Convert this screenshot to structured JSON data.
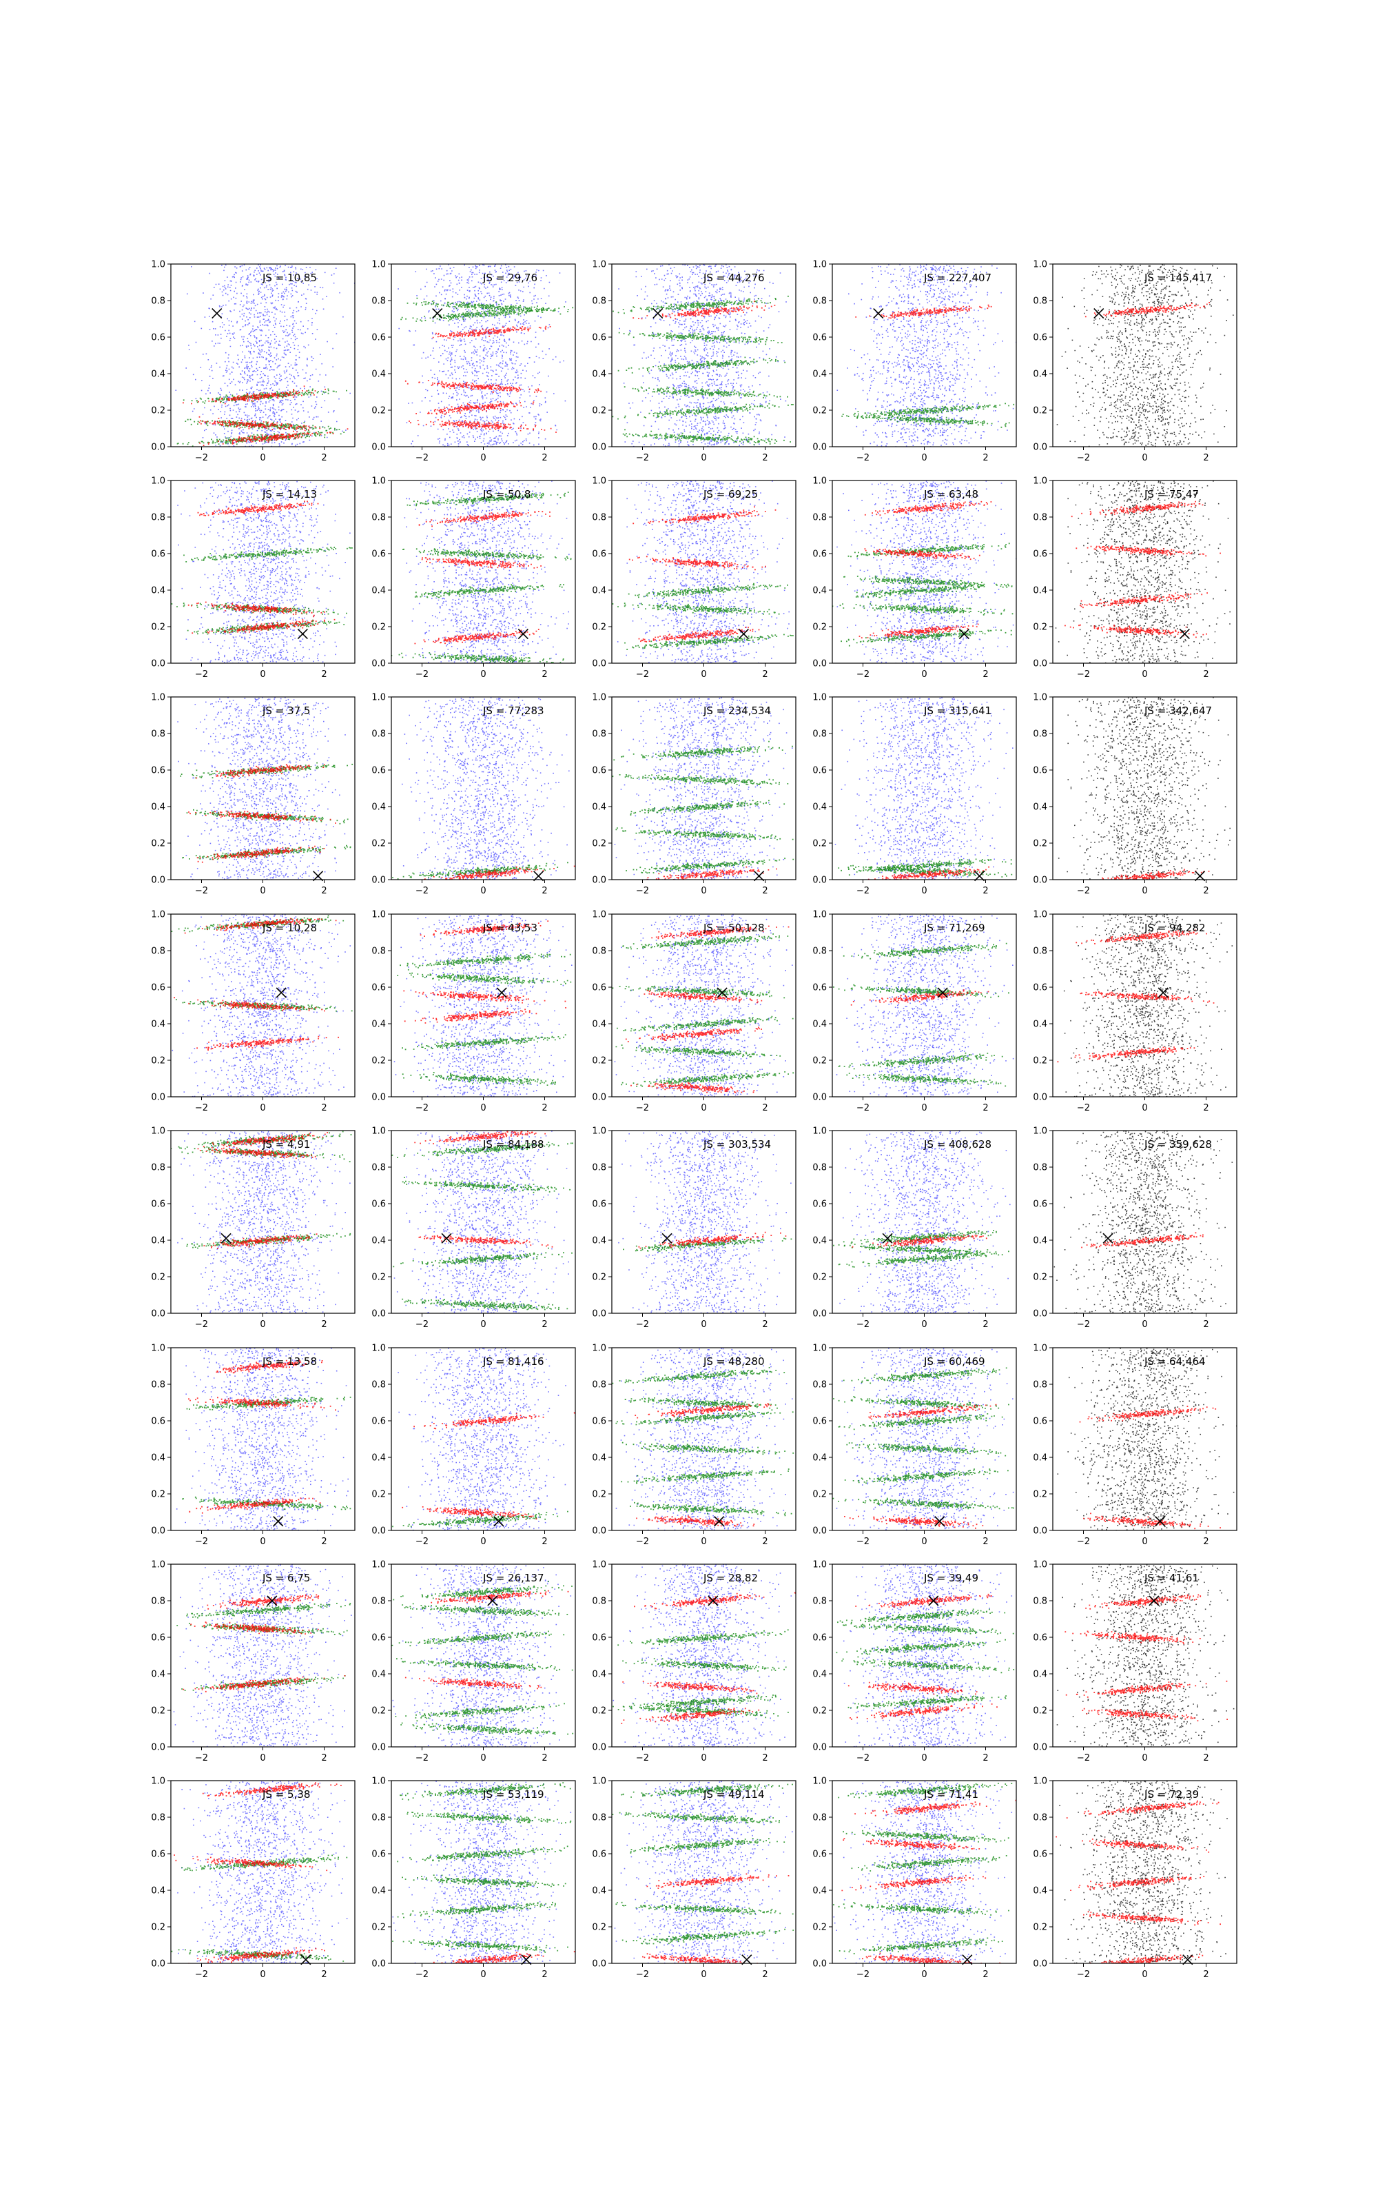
{
  "figure": {
    "rows": 8,
    "cols": 5,
    "colors": {
      "blue": "#0000ff",
      "green": "#008000",
      "red": "#ff0000",
      "black": "#000000",
      "axis": "#000000",
      "background": "#ffffff"
    },
    "marker": "x"
  },
  "chart_data": {
    "type": "scatter",
    "xlim": [
      -3,
      3
    ],
    "ylim": [
      0,
      1
    ],
    "xticks": [
      -2,
      0,
      2
    ],
    "xtick_labels": [
      "−2",
      "0",
      "2"
    ],
    "yticks": [
      0.0,
      0.2,
      0.4,
      0.6,
      0.8,
      1.0
    ],
    "ytick_labels": [
      "0.0",
      "0.2",
      "0.4",
      "0.6",
      "0.8",
      "1.0"
    ],
    "grid": false,
    "rows": [
      {
        "marker": [
          -1.5,
          0.73
        ],
        "panels": [
          {
            "label": "JS = 10,85",
            "green_bands": [
              0.05,
              0.12,
              0.28
            ],
            "red_bands": [
              0.05,
              0.12,
              0.28
            ],
            "blue": true,
            "black": false
          },
          {
            "label": "JS = 29,76",
            "green_bands": [
              0.73,
              0.77
            ],
            "red_bands": [
              0.63,
              0.33,
              0.22,
              0.12
            ],
            "blue": true,
            "black": false
          },
          {
            "label": "JS = 44,276",
            "green_bands": [
              0.78,
              0.6,
              0.45,
              0.3,
              0.2,
              0.05
            ],
            "red_bands": [
              0.74
            ],
            "blue": true,
            "black": false
          },
          {
            "label": "JS = 227,407",
            "green_bands": [
              0.2,
              0.15
            ],
            "red_bands": [
              0.74
            ],
            "blue": true,
            "black": false
          },
          {
            "label": "JS = 145,417",
            "green_bands": [],
            "red_bands": [
              0.75
            ],
            "blue": false,
            "black": true
          }
        ]
      },
      {
        "marker": [
          1.3,
          0.16
        ],
        "panels": [
          {
            "label": "JS = 14,13",
            "green_bands": [
              0.2,
              0.3,
              0.6
            ],
            "red_bands": [
              0.2,
              0.3,
              0.85
            ],
            "blue": true,
            "black": false
          },
          {
            "label": "JS = 50,8",
            "green_bands": [
              0.9,
              0.6,
              0.4,
              0.03
            ],
            "red_bands": [
              0.8,
              0.55,
              0.15
            ],
            "blue": true,
            "black": false
          },
          {
            "label": "JS = 69,25",
            "green_bands": [
              0.4,
              0.3,
              0.12
            ],
            "red_bands": [
              0.8,
              0.55,
              0.16
            ],
            "blue": true,
            "black": false
          },
          {
            "label": "JS = 63,48",
            "green_bands": [
              0.62,
              0.45,
              0.4,
              0.3,
              0.15
            ],
            "red_bands": [
              0.85,
              0.6,
              0.18
            ],
            "blue": true,
            "black": false
          },
          {
            "label": "JS = 75,47",
            "green_bands": [],
            "red_bands": [
              0.85,
              0.62,
              0.35,
              0.18
            ],
            "blue": false,
            "black": true
          }
        ]
      },
      {
        "marker": [
          1.8,
          0.02
        ],
        "panels": [
          {
            "label": "JS = 37,5",
            "green_bands": [
              0.6,
              0.35,
              0.15
            ],
            "red_bands": [
              0.6,
              0.35,
              0.15
            ],
            "blue": true,
            "black": false
          },
          {
            "label": "JS = 77,283",
            "green_bands": [
              0.05
            ],
            "red_bands": [
              0.03
            ],
            "blue": true,
            "black": false
          },
          {
            "label": "JS = 234,534",
            "green_bands": [
              0.7,
              0.55,
              0.4,
              0.25,
              0.08
            ],
            "red_bands": [
              0.03
            ],
            "blue": true,
            "black": false
          },
          {
            "label": "JS = 315,641",
            "green_bands": [
              0.08,
              0.05
            ],
            "red_bands": [
              0.03
            ],
            "blue": true,
            "black": false
          },
          {
            "label": "JS = 342,647",
            "green_bands": [],
            "red_bands": [
              0.02
            ],
            "blue": false,
            "black": true
          }
        ]
      },
      {
        "marker": [
          0.6,
          0.57
        ],
        "panels": [
          {
            "label": "JS = 10,28",
            "green_bands": [
              0.95,
              0.5
            ],
            "red_bands": [
              0.95,
              0.5,
              0.3
            ],
            "blue": true,
            "black": false
          },
          {
            "label": "JS = 43,53",
            "green_bands": [
              0.75,
              0.65,
              0.3,
              0.1
            ],
            "red_bands": [
              0.92,
              0.55,
              0.45
            ],
            "blue": true,
            "black": false
          },
          {
            "label": "JS = 50,128",
            "green_bands": [
              0.85,
              0.58,
              0.4,
              0.25,
              0.1
            ],
            "red_bands": [
              0.9,
              0.55,
              0.35,
              0.05
            ],
            "blue": true,
            "black": false
          },
          {
            "label": "JS = 71,269",
            "green_bands": [
              0.8,
              0.58,
              0.2,
              0.1
            ],
            "red_bands": [
              0.55
            ],
            "blue": true,
            "black": false
          },
          {
            "label": "JS = 94,282",
            "green_bands": [],
            "red_bands": [
              0.88,
              0.55,
              0.25
            ],
            "blue": false,
            "black": true
          }
        ]
      },
      {
        "marker": [
          -1.2,
          0.41
        ],
        "panels": [
          {
            "label": "JS = 4,91",
            "green_bands": [
              0.95,
              0.88,
              0.4
            ],
            "red_bands": [
              0.95,
              0.88,
              0.4
            ],
            "blue": true,
            "black": false
          },
          {
            "label": "JS = 84,188",
            "green_bands": [
              0.9,
              0.7,
              0.3,
              0.05
            ],
            "red_bands": [
              0.97,
              0.4
            ],
            "blue": true,
            "black": false
          },
          {
            "label": "JS = 303,534",
            "green_bands": [
              0.38
            ],
            "red_bands": [
              0.4
            ],
            "blue": true,
            "black": false
          },
          {
            "label": "JS = 408,628",
            "green_bands": [
              0.42,
              0.35,
              0.3
            ],
            "red_bands": [
              0.4
            ],
            "blue": true,
            "black": false
          },
          {
            "label": "JS = 359,628",
            "green_bands": [],
            "red_bands": [
              0.4
            ],
            "blue": false,
            "black": true
          }
        ]
      },
      {
        "marker": [
          0.5,
          0.05
        ],
        "panels": [
          {
            "label": "JS = 13,58",
            "green_bands": [
              0.7,
              0.15
            ],
            "red_bands": [
              0.9,
              0.7,
              0.15
            ],
            "blue": true,
            "black": false
          },
          {
            "label": "JS = 81,416",
            "green_bands": [
              0.06
            ],
            "red_bands": [
              0.6,
              0.1
            ],
            "blue": true,
            "black": false
          },
          {
            "label": "JS = 48,280",
            "green_bands": [
              0.85,
              0.7,
              0.62,
              0.45,
              0.3,
              0.12
            ],
            "red_bands": [
              0.66,
              0.05
            ],
            "blue": true,
            "black": false
          },
          {
            "label": "JS = 60,469",
            "green_bands": [
              0.85,
              0.7,
              0.6,
              0.45,
              0.3,
              0.15
            ],
            "red_bands": [
              0.65,
              0.05
            ],
            "blue": true,
            "black": false
          },
          {
            "label": "JS = 64,464",
            "green_bands": [],
            "red_bands": [
              0.64,
              0.05
            ],
            "blue": false,
            "black": true
          }
        ]
      },
      {
        "marker": [
          0.3,
          0.8
        ],
        "panels": [
          {
            "label": "JS = 6,75",
            "green_bands": [
              0.75,
              0.65,
              0.35
            ],
            "red_bands": [
              0.8,
              0.65,
              0.35
            ],
            "blue": true,
            "black": false
          },
          {
            "label": "JS = 26,137",
            "green_bands": [
              0.85,
              0.75,
              0.6,
              0.45,
              0.2,
              0.1
            ],
            "red_bands": [
              0.82,
              0.35
            ],
            "blue": true,
            "black": false
          },
          {
            "label": "JS = 28,82",
            "green_bands": [
              0.6,
              0.45,
              0.25,
              0.2
            ],
            "red_bands": [
              0.8,
              0.33,
              0.18
            ],
            "blue": true,
            "black": false
          },
          {
            "label": "JS = 39,49",
            "green_bands": [
              0.72,
              0.65,
              0.55,
              0.45,
              0.25
            ],
            "red_bands": [
              0.8,
              0.32,
              0.2
            ],
            "blue": true,
            "black": false
          },
          {
            "label": "JS = 41,61",
            "green_bands": [],
            "red_bands": [
              0.8,
              0.6,
              0.32,
              0.18
            ],
            "blue": false,
            "black": true
          }
        ]
      },
      {
        "marker": [
          1.4,
          0.02
        ],
        "panels": [
          {
            "label": "JS = 5,38",
            "green_bands": [
              0.55,
              0.05
            ],
            "red_bands": [
              0.95,
              0.55,
              0.05
            ],
            "blue": true,
            "black": false
          },
          {
            "label": "JS = 53,119",
            "green_bands": [
              0.95,
              0.8,
              0.6,
              0.45,
              0.3,
              0.1
            ],
            "red_bands": [
              0.02
            ],
            "blue": true,
            "black": false
          },
          {
            "label": "JS = 49,114",
            "green_bands": [
              0.95,
              0.8,
              0.65,
              0.3,
              0.15
            ],
            "red_bands": [
              0.45,
              0.02
            ],
            "blue": true,
            "black": false
          },
          {
            "label": "JS = 71,41",
            "green_bands": [
              0.95,
              0.7,
              0.55,
              0.3,
              0.1
            ],
            "red_bands": [
              0.85,
              0.65,
              0.45,
              0.02
            ],
            "blue": true,
            "black": false
          },
          {
            "label": "JS = 72,39",
            "green_bands": [],
            "red_bands": [
              0.85,
              0.65,
              0.45,
              0.25,
              0.02
            ],
            "blue": false,
            "black": true
          }
        ]
      }
    ]
  }
}
